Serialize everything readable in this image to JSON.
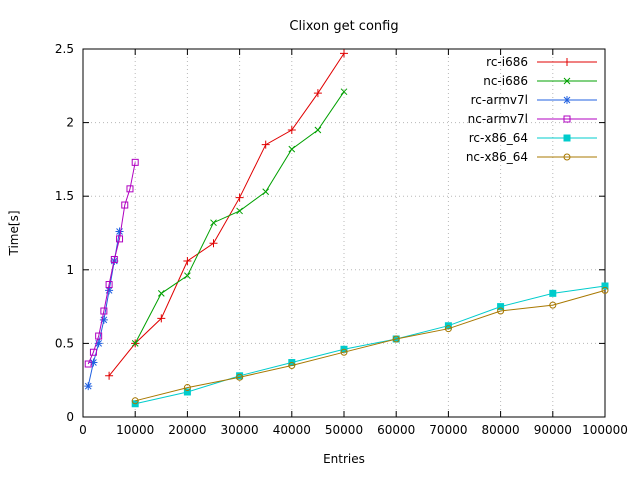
{
  "title": "Clixon get config",
  "chart_data": {
    "type": "line",
    "title": "Clixon get config",
    "xlabel": "Entries",
    "ylabel": "Time[s]",
    "xlim": [
      0,
      100000
    ],
    "ylim": [
      0,
      2.5
    ],
    "xticks": [
      0,
      10000,
      20000,
      30000,
      40000,
      50000,
      60000,
      70000,
      80000,
      90000,
      100000
    ],
    "yticks": [
      0,
      0.5,
      1,
      1.5,
      2,
      2.5
    ],
    "grid": true,
    "legend_position": "top-right",
    "series": [
      {
        "name": "rc-i686",
        "color": "#e00000",
        "marker": "plus",
        "points": [
          [
            5000,
            0.28
          ],
          [
            10000,
            0.5
          ],
          [
            15000,
            0.67
          ],
          [
            20000,
            1.06
          ],
          [
            25000,
            1.18
          ],
          [
            30000,
            1.49
          ],
          [
            35000,
            1.85
          ],
          [
            40000,
            1.95
          ],
          [
            45000,
            2.2
          ],
          [
            50000,
            2.47
          ]
        ]
      },
      {
        "name": "nc-i686",
        "color": "#00a000",
        "marker": "cross",
        "points": [
          [
            10000,
            0.5
          ],
          [
            15000,
            0.84
          ],
          [
            20000,
            0.96
          ],
          [
            25000,
            1.32
          ],
          [
            30000,
            1.4
          ],
          [
            35000,
            1.53
          ],
          [
            40000,
            1.82
          ],
          [
            45000,
            1.95
          ],
          [
            50000,
            2.21
          ]
        ]
      },
      {
        "name": "rc-armv7l",
        "color": "#2060e0",
        "marker": "asterisk",
        "points": [
          [
            1000,
            0.21
          ],
          [
            2000,
            0.37
          ],
          [
            3000,
            0.5
          ],
          [
            4000,
            0.66
          ],
          [
            5000,
            0.86
          ],
          [
            6000,
            1.06
          ],
          [
            7000,
            1.26
          ]
        ]
      },
      {
        "name": "nc-armv7l",
        "color": "#b000c0",
        "marker": "square-open",
        "points": [
          [
            1000,
            0.36
          ],
          [
            2000,
            0.44
          ],
          [
            3000,
            0.55
          ],
          [
            4000,
            0.72
          ],
          [
            5000,
            0.9
          ],
          [
            6000,
            1.07
          ],
          [
            7000,
            1.21
          ],
          [
            8000,
            1.44
          ],
          [
            9000,
            1.55
          ],
          [
            10000,
            1.73
          ]
        ]
      },
      {
        "name": "rc-x86_64",
        "color": "#00cccc",
        "marker": "square-filled",
        "points": [
          [
            10000,
            0.09
          ],
          [
            20000,
            0.17
          ],
          [
            30000,
            0.28
          ],
          [
            40000,
            0.37
          ],
          [
            50000,
            0.46
          ],
          [
            60000,
            0.53
          ],
          [
            70000,
            0.62
          ],
          [
            80000,
            0.75
          ],
          [
            90000,
            0.84
          ],
          [
            100000,
            0.89
          ]
        ]
      },
      {
        "name": "nc-x86_64",
        "color": "#a87800",
        "marker": "circle-open",
        "points": [
          [
            10000,
            0.11
          ],
          [
            20000,
            0.2
          ],
          [
            30000,
            0.27
          ],
          [
            40000,
            0.35
          ],
          [
            50000,
            0.44
          ],
          [
            60000,
            0.53
          ],
          [
            70000,
            0.6
          ],
          [
            80000,
            0.72
          ],
          [
            90000,
            0.76
          ],
          [
            100000,
            0.86
          ]
        ]
      }
    ]
  }
}
